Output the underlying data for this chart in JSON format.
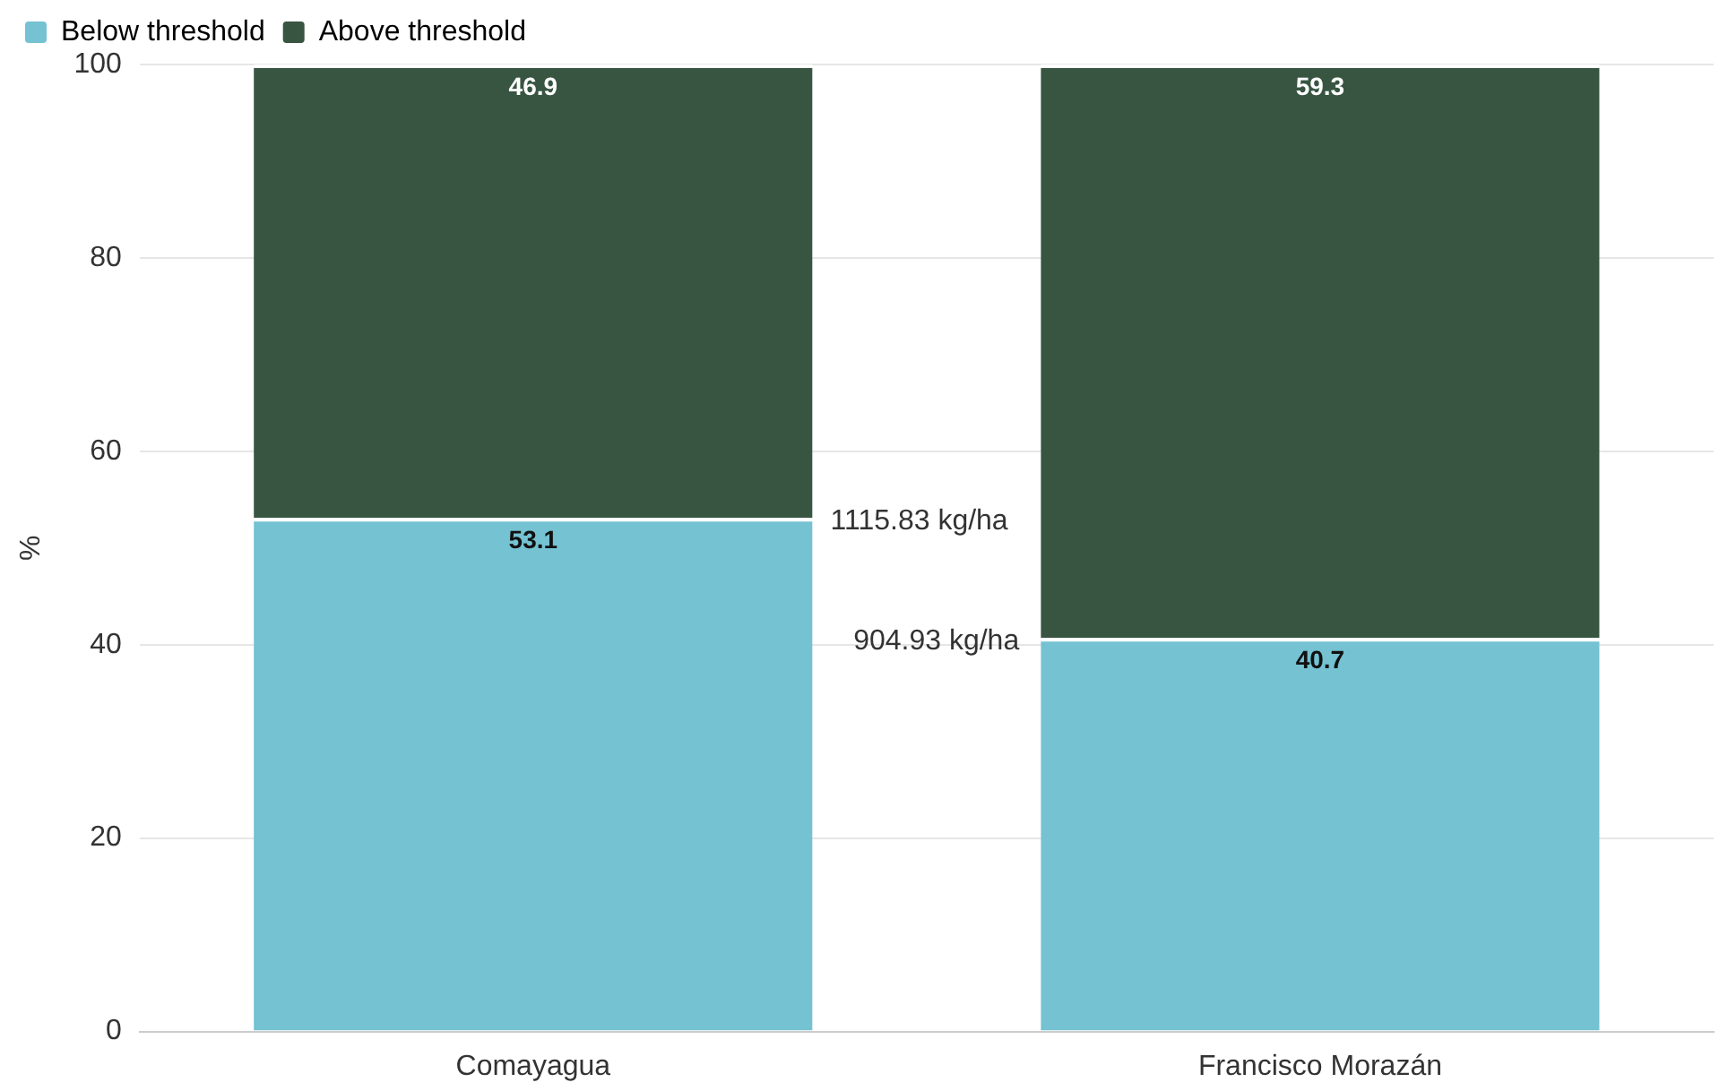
{
  "chart_data": {
    "type": "bar",
    "stacked": true,
    "ylabel": "%",
    "categories": [
      "Comayagua",
      "Francisco Morazán"
    ],
    "series": [
      {
        "name": "Below threshold",
        "color": "#74c2d2",
        "values": [
          53.1,
          40.7
        ]
      },
      {
        "name": "Above threshold",
        "color": "#385541",
        "values": [
          46.9,
          59.3
        ]
      }
    ],
    "ylim": [
      0,
      100
    ],
    "yticks": [
      0,
      20,
      40,
      60,
      80,
      100
    ],
    "grid": "y",
    "legend": "top left",
    "data_labels": true,
    "annotations": [
      "1115.83 kg/ha",
      "904.93 kg/ha"
    ]
  }
}
